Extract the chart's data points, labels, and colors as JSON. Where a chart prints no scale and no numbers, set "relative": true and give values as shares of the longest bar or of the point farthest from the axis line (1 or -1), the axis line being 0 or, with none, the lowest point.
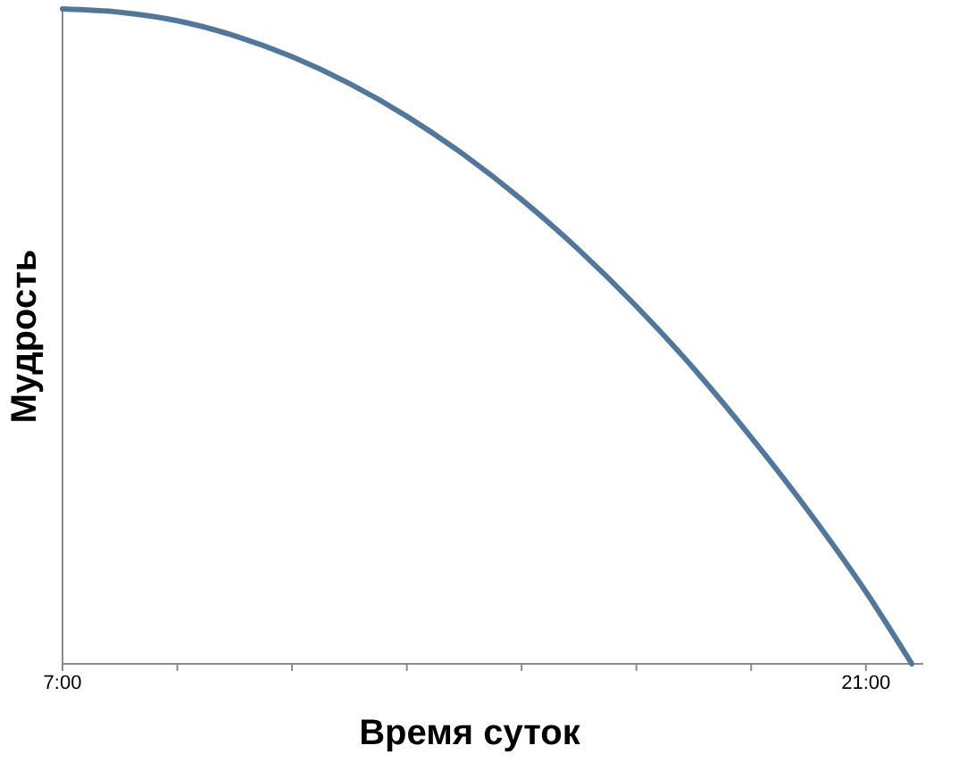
{
  "chart_data": {
    "type": "line",
    "xlabel": "Время суток",
    "ylabel": "Мудрость",
    "relative": true,
    "x": [
      7,
      8,
      9,
      10,
      11,
      12,
      13,
      14,
      15,
      16,
      17,
      18,
      19,
      20,
      21,
      21.8
    ],
    "series": [
      {
        "color": "#52779b",
        "values": [
          1,
          0.995,
          0.982,
          0.959,
          0.927,
          0.886,
          0.836,
          0.777,
          0.709,
          0.632,
          0.546,
          0.451,
          0.346,
          0.233,
          0.11,
          0
        ]
      }
    ],
    "xlim": [
      7,
      22
    ],
    "xticks": [
      {
        "value": 7,
        "label": "7:00"
      },
      {
        "value": 9,
        "label": null
      },
      {
        "value": 11,
        "label": null
      },
      {
        "value": 13,
        "label": null
      },
      {
        "value": 15,
        "label": null
      },
      {
        "value": 17,
        "label": null
      },
      {
        "value": 19,
        "label": null
      },
      {
        "value": 21,
        "label": "21:00"
      }
    ]
  }
}
